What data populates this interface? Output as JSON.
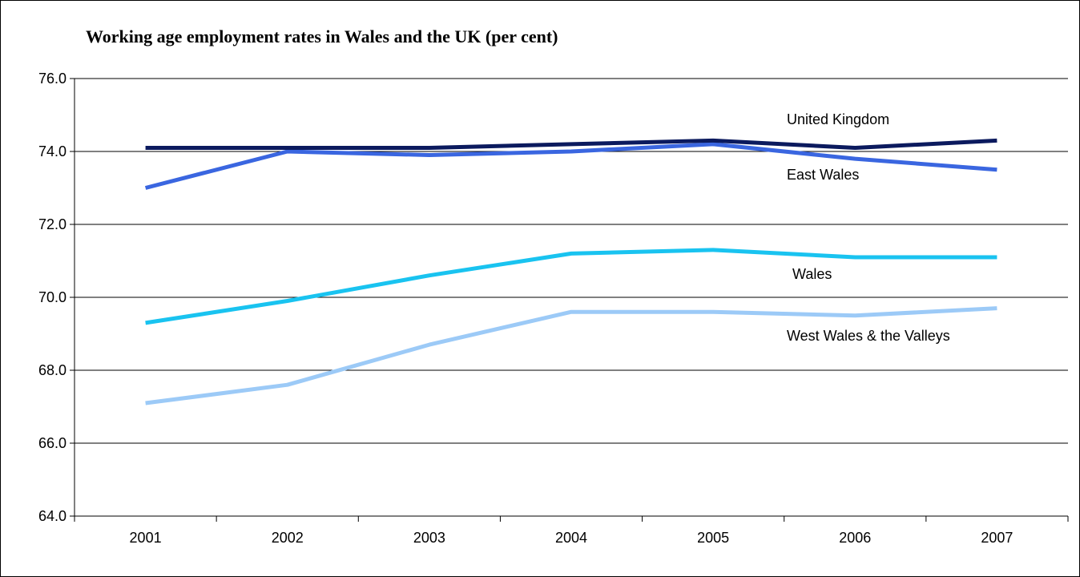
{
  "chart_data": {
    "type": "line",
    "title": "Working age employment rates in Wales and the UK (per cent)",
    "xlabel": "",
    "ylabel": "",
    "categories": [
      "2001",
      "2002",
      "2003",
      "2004",
      "2005",
      "2006",
      "2007"
    ],
    "ylim": [
      64.0,
      76.0
    ],
    "yticks": [
      "64.0",
      "66.0",
      "68.0",
      "70.0",
      "72.0",
      "74.0",
      "76.0"
    ],
    "grid": true,
    "legend": "inline labels",
    "series": [
      {
        "name": "United Kingdom",
        "color": "#0b1a5e",
        "values": [
          74.1,
          74.1,
          74.1,
          74.2,
          74.3,
          74.1,
          74.3
        ]
      },
      {
        "name": "East Wales",
        "color": "#3a66e0",
        "values": [
          73.0,
          74.0,
          73.9,
          74.0,
          74.2,
          73.8,
          73.5
        ]
      },
      {
        "name": "Wales",
        "color": "#19c3f0",
        "values": [
          69.3,
          69.9,
          70.6,
          71.2,
          71.3,
          71.1,
          71.1
        ]
      },
      {
        "name": "West Wales & the Valleys",
        "color": "#9ccaf7",
        "values": [
          67.1,
          67.6,
          68.7,
          69.6,
          69.6,
          69.5,
          69.7
        ]
      }
    ]
  }
}
